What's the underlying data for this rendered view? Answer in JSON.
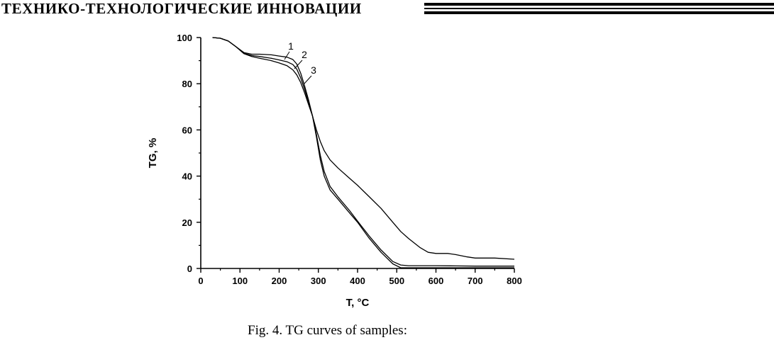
{
  "header": {
    "title": "ТЕХНИКО-ТЕХНОЛОГИЧЕСКИЕ ИННОВАЦИИ"
  },
  "caption": "Fig. 4. TG curves of samples:",
  "chart_data": {
    "type": "line",
    "xlabel": "T, °C",
    "ylabel": "TG, %",
    "xlim": [
      0,
      800
    ],
    "ylim": [
      0,
      100
    ],
    "x_ticks": [
      0,
      100,
      200,
      300,
      400,
      500,
      600,
      700,
      800
    ],
    "y_ticks": [
      0,
      20,
      40,
      60,
      80,
      100
    ],
    "grid": false,
    "series": [
      {
        "name": "1",
        "x": [
          30,
          50,
          70,
          90,
          110,
          130,
          150,
          180,
          200,
          220,
          235,
          245,
          255,
          265,
          275,
          285,
          295,
          305,
          315,
          330,
          350,
          380,
          400,
          430,
          460,
          490,
          510,
          530,
          560,
          600,
          650,
          700,
          750,
          800
        ],
        "y": [
          100,
          99.7,
          98.5,
          96,
          93.5,
          92.8,
          92.8,
          92.5,
          92,
          91.5,
          90.5,
          88.5,
          84.5,
          79,
          73,
          66,
          57,
          47,
          40,
          34,
          30,
          24,
          20,
          13,
          7,
          2,
          0.3,
          0.3,
          0.3,
          0.3,
          0.3,
          0.3,
          0.3,
          0.3
        ]
      },
      {
        "name": "2",
        "x": [
          30,
          50,
          70,
          90,
          110,
          130,
          150,
          180,
          200,
          220,
          235,
          245,
          255,
          265,
          275,
          285,
          295,
          305,
          315,
          330,
          350,
          380,
          400,
          430,
          460,
          490,
          510,
          530,
          560,
          600,
          650,
          700,
          750,
          800
        ],
        "y": [
          100,
          99.7,
          98.5,
          96,
          93.2,
          92.2,
          91.8,
          91,
          90.3,
          89.5,
          88.3,
          86.3,
          82.5,
          77.5,
          72,
          66,
          58,
          49,
          42,
          35.5,
          31,
          25,
          20.5,
          14,
          8,
          3,
          1.5,
          1.2,
          1.2,
          1.2,
          1.1,
          1,
          1,
          1
        ]
      },
      {
        "name": "3",
        "x": [
          30,
          50,
          70,
          90,
          110,
          130,
          150,
          180,
          200,
          220,
          235,
          245,
          255,
          265,
          275,
          285,
          295,
          305,
          315,
          330,
          350,
          380,
          400,
          430,
          460,
          490,
          510,
          530,
          560,
          580,
          600,
          630,
          650,
          680,
          700,
          750,
          800
        ],
        "y": [
          100,
          99.7,
          98.5,
          96,
          93,
          91.8,
          91,
          90,
          89,
          87.8,
          86,
          83.8,
          80.5,
          76,
          71,
          66,
          60,
          55,
          51,
          47,
          43.5,
          39,
          36,
          31,
          26,
          20,
          16,
          13,
          9,
          7,
          6.5,
          6.5,
          6,
          5,
          4.5,
          4.5,
          4
        ]
      }
    ],
    "annotations": [
      "1",
      "2",
      "3"
    ]
  }
}
